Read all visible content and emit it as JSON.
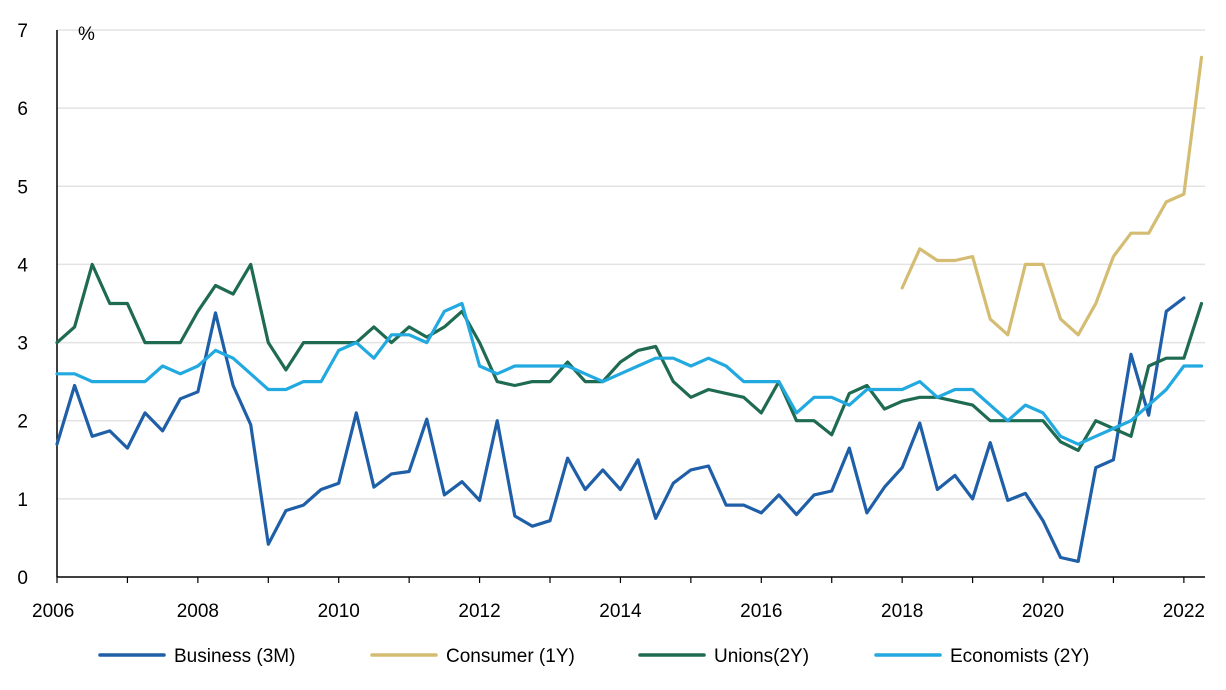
{
  "chart_data": {
    "type": "line",
    "title": "",
    "xlabel": "",
    "ylabel": "",
    "unit_label": "%",
    "xlim": [
      2006,
      2022.3
    ],
    "ylim": [
      0,
      7
    ],
    "x_ticks": [
      "2006",
      "2008",
      "2010",
      "2012",
      "2014",
      "2016",
      "2018",
      "2020",
      "2022"
    ],
    "y_ticks": [
      "0",
      "1",
      "2",
      "3",
      "4",
      "5",
      "6",
      "7"
    ],
    "grid": "horizontal",
    "legend_position": "bottom",
    "series": [
      {
        "name": "Business (3M)",
        "color": "#1f5fa8",
        "x": [
          2006.0,
          2006.25,
          2006.5,
          2006.75,
          2007.0,
          2007.25,
          2007.5,
          2007.75,
          2008.0,
          2008.25,
          2008.5,
          2008.75,
          2009.0,
          2009.25,
          2009.5,
          2009.75,
          2010.0,
          2010.25,
          2010.5,
          2010.75,
          2011.0,
          2011.25,
          2011.5,
          2011.75,
          2012.0,
          2012.25,
          2012.5,
          2012.75,
          2013.0,
          2013.25,
          2013.5,
          2013.75,
          2014.0,
          2014.25,
          2014.5,
          2014.75,
          2015.0,
          2015.25,
          2015.5,
          2015.75,
          2016.0,
          2016.25,
          2016.5,
          2016.75,
          2017.0,
          2017.25,
          2017.5,
          2017.75,
          2018.0,
          2018.25,
          2018.5,
          2018.75,
          2019.0,
          2019.25,
          2019.5,
          2019.75,
          2020.0,
          2020.25,
          2020.5,
          2020.75,
          2021.0,
          2021.25,
          2021.5,
          2021.75,
          2022.0
        ],
        "values": [
          1.7,
          2.45,
          1.8,
          1.87,
          1.65,
          2.1,
          1.87,
          2.28,
          2.37,
          3.38,
          2.45,
          1.95,
          0.42,
          0.85,
          0.92,
          1.12,
          1.2,
          2.1,
          1.15,
          1.32,
          1.35,
          2.02,
          1.05,
          1.22,
          0.98,
          2.0,
          0.78,
          0.65,
          0.72,
          1.52,
          1.12,
          1.37,
          1.12,
          1.5,
          0.75,
          1.2,
          1.37,
          1.42,
          0.92,
          0.92,
          0.82,
          1.05,
          0.8,
          1.05,
          1.1,
          1.65,
          0.82,
          1.15,
          1.4,
          1.97,
          1.12,
          1.3,
          1.0,
          1.72,
          0.98,
          1.07,
          0.72,
          0.25,
          0.2,
          1.4,
          1.5,
          2.85,
          2.07,
          3.4,
          3.57
        ]
      },
      {
        "name": "Consumer (1Y)",
        "color": "#d4bd72",
        "x": [
          2018.0,
          2018.25,
          2018.5,
          2018.75,
          2019.0,
          2019.25,
          2019.5,
          2019.75,
          2020.0,
          2020.25,
          2020.5,
          2020.75,
          2021.0,
          2021.25,
          2021.5,
          2021.75,
          2022.0,
          2022.25
        ],
        "values": [
          3.7,
          4.2,
          4.05,
          4.05,
          4.1,
          3.3,
          3.1,
          4.0,
          4.0,
          3.3,
          3.1,
          3.5,
          4.1,
          4.4,
          4.4,
          4.8,
          4.9,
          6.65
        ]
      },
      {
        "name": "Unions(2Y)",
        "color": "#1f6b52",
        "x": [
          2006.0,
          2006.25,
          2006.5,
          2006.75,
          2007.0,
          2007.25,
          2007.5,
          2007.75,
          2008.0,
          2008.25,
          2008.5,
          2008.75,
          2009.0,
          2009.25,
          2009.5,
          2009.75,
          2010.0,
          2010.25,
          2010.5,
          2010.75,
          2011.0,
          2011.25,
          2011.5,
          2011.75,
          2012.0,
          2012.25,
          2012.5,
          2012.75,
          2013.0,
          2013.25,
          2013.5,
          2013.75,
          2014.0,
          2014.25,
          2014.5,
          2014.75,
          2015.0,
          2015.25,
          2015.5,
          2015.75,
          2016.0,
          2016.25,
          2016.5,
          2016.75,
          2017.0,
          2017.25,
          2017.5,
          2017.75,
          2018.0,
          2018.25,
          2018.5,
          2018.75,
          2019.0,
          2019.25,
          2019.5,
          2019.75,
          2020.0,
          2020.25,
          2020.5,
          2020.75,
          2021.0,
          2021.25,
          2021.5,
          2021.75,
          2022.0,
          2022.25
        ],
        "values": [
          3.0,
          3.2,
          4.0,
          3.5,
          3.5,
          3.0,
          3.0,
          3.0,
          3.4,
          3.73,
          3.62,
          4.0,
          3.0,
          2.65,
          3.0,
          3.0,
          3.0,
          3.0,
          3.2,
          3.0,
          3.2,
          3.07,
          3.2,
          3.4,
          3.0,
          2.5,
          2.45,
          2.5,
          2.5,
          2.75,
          2.5,
          2.5,
          2.75,
          2.9,
          2.95,
          2.5,
          2.3,
          2.4,
          2.35,
          2.3,
          2.1,
          2.5,
          2.0,
          2.0,
          1.82,
          2.35,
          2.45,
          2.15,
          2.25,
          2.3,
          2.3,
          2.25,
          2.2,
          2.0,
          2.0,
          2.0,
          2.0,
          1.73,
          1.62,
          2.0,
          1.9,
          1.8,
          2.7,
          2.8,
          2.8,
          3.5
        ]
      },
      {
        "name": "Economists (2Y)",
        "color": "#21a9e0",
        "x": [
          2006.0,
          2006.25,
          2006.5,
          2006.75,
          2007.0,
          2007.25,
          2007.5,
          2007.75,
          2008.0,
          2008.25,
          2008.5,
          2008.75,
          2009.0,
          2009.25,
          2009.5,
          2009.75,
          2010.0,
          2010.25,
          2010.5,
          2010.75,
          2011.0,
          2011.25,
          2011.5,
          2011.75,
          2012.0,
          2012.25,
          2012.5,
          2012.75,
          2013.0,
          2013.25,
          2013.5,
          2013.75,
          2014.0,
          2014.25,
          2014.5,
          2014.75,
          2015.0,
          2015.25,
          2015.5,
          2015.75,
          2016.0,
          2016.25,
          2016.5,
          2016.75,
          2017.0,
          2017.25,
          2017.5,
          2017.75,
          2018.0,
          2018.25,
          2018.5,
          2018.75,
          2019.0,
          2019.25,
          2019.5,
          2019.75,
          2020.0,
          2020.25,
          2020.5,
          2020.75,
          2021.0,
          2021.25,
          2021.5,
          2021.75,
          2022.0,
          2022.25
        ],
        "values": [
          2.6,
          2.6,
          2.5,
          2.5,
          2.5,
          2.5,
          2.7,
          2.6,
          2.7,
          2.9,
          2.8,
          2.6,
          2.4,
          2.4,
          2.5,
          2.5,
          2.9,
          3.0,
          2.8,
          3.1,
          3.1,
          3.0,
          3.4,
          3.5,
          2.7,
          2.6,
          2.7,
          2.7,
          2.7,
          2.7,
          2.6,
          2.5,
          2.6,
          2.7,
          2.8,
          2.8,
          2.7,
          2.8,
          2.7,
          2.5,
          2.5,
          2.5,
          2.1,
          2.3,
          2.3,
          2.2,
          2.4,
          2.4,
          2.4,
          2.5,
          2.3,
          2.4,
          2.4,
          2.2,
          2.0,
          2.2,
          2.1,
          1.8,
          1.7,
          1.8,
          1.9,
          2.0,
          2.2,
          2.4,
          2.7,
          2.7
        ]
      }
    ]
  }
}
